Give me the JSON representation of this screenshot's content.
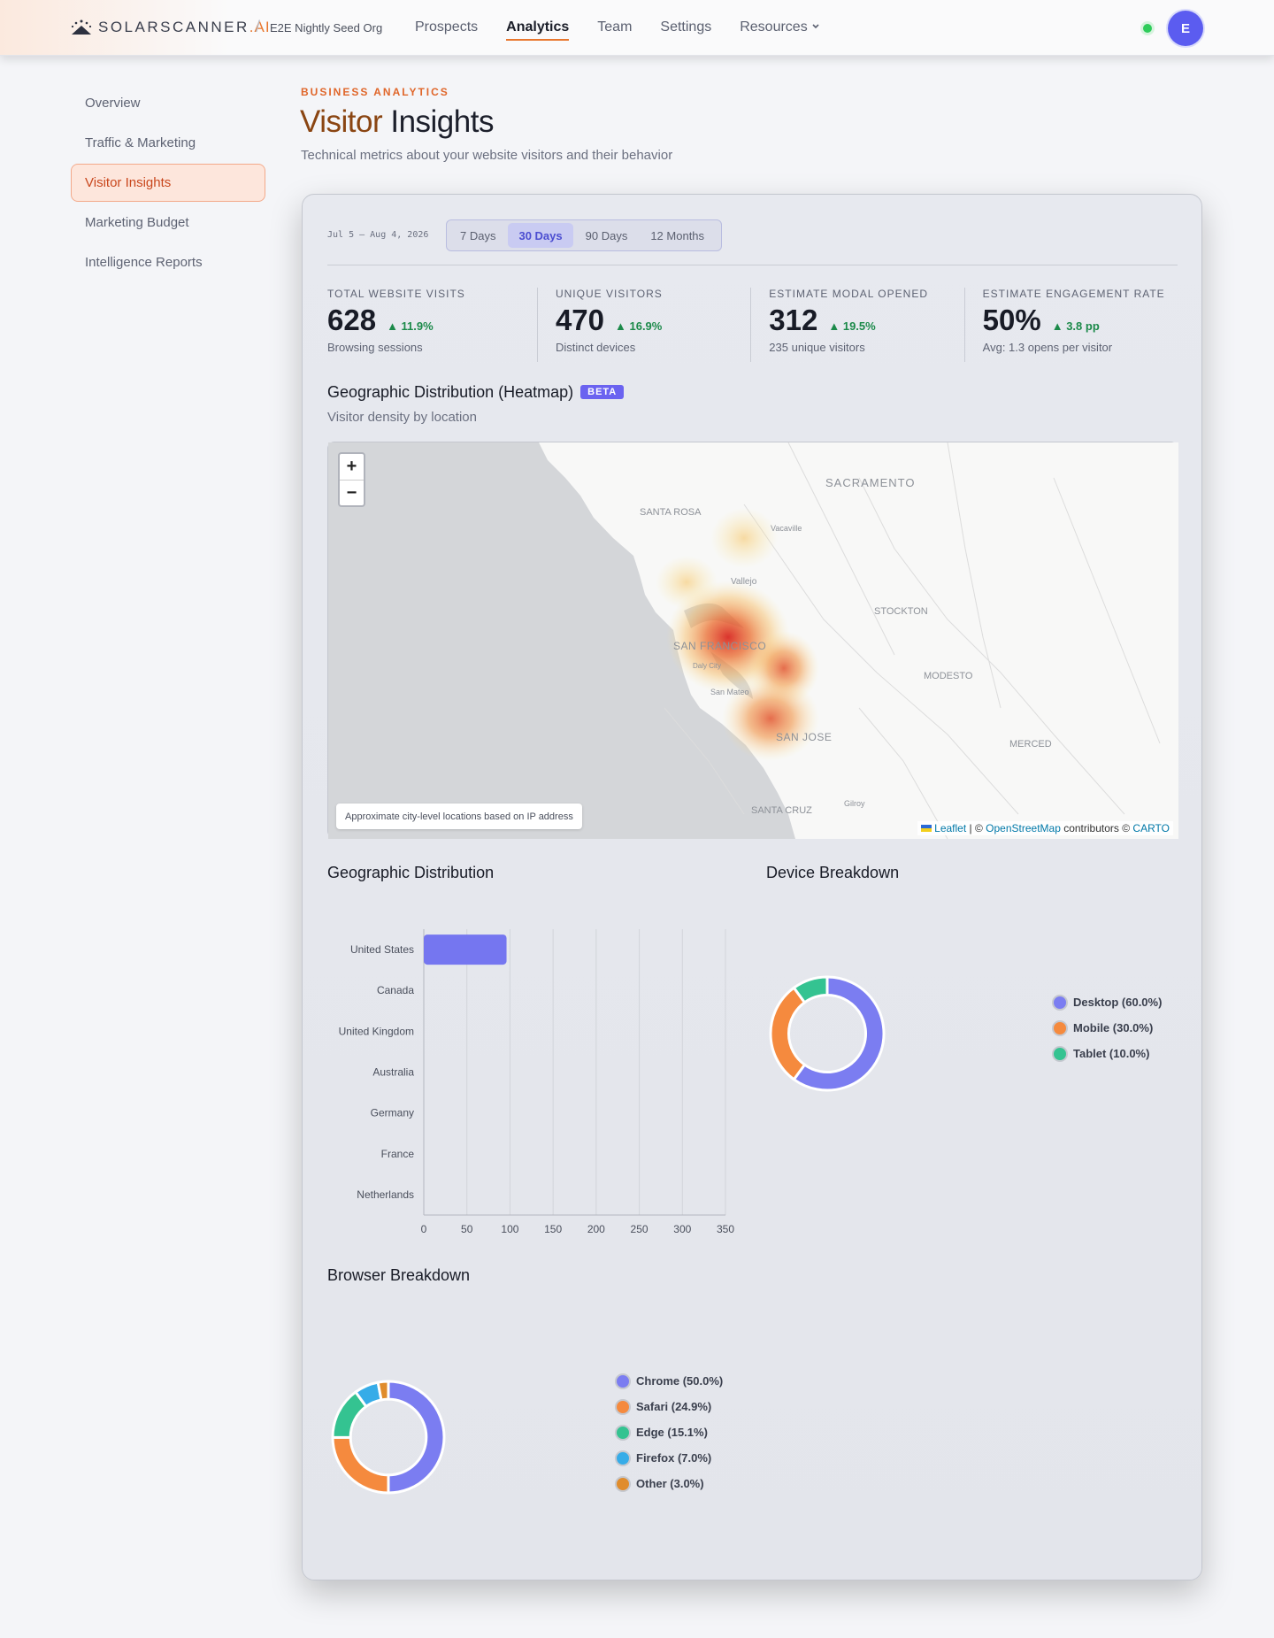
{
  "header": {
    "logo_text": "SOLARSCANNER",
    "logo_suffix": ".AI",
    "org": "E2E Nightly Seed Org",
    "nav": [
      {
        "label": "Prospects"
      },
      {
        "label": "Analytics"
      },
      {
        "label": "Team"
      },
      {
        "label": "Settings"
      },
      {
        "label": "Resources"
      }
    ],
    "avatar_initial": "E"
  },
  "sidebar": {
    "items": [
      {
        "label": "Overview"
      },
      {
        "label": "Traffic & Marketing"
      },
      {
        "label": "Visitor Insights"
      },
      {
        "label": "Marketing Budget"
      },
      {
        "label": "Intelligence Reports"
      }
    ]
  },
  "page": {
    "eyebrow": "BUSINESS ANALYTICS",
    "title_word1": "Visitor",
    "title_word2": "Insights",
    "subtitle": "Technical metrics about your website visitors and their behavior"
  },
  "filters": {
    "date_range": "Jul 5 – Aug 4, 2026",
    "tabs": [
      {
        "label": "7 Days"
      },
      {
        "label": "30 Days"
      },
      {
        "label": "90 Days"
      },
      {
        "label": "12 Months"
      }
    ],
    "selected": "30 Days"
  },
  "kpis": [
    {
      "label": "TOTAL WEBSITE VISITS",
      "value": "628",
      "delta": "▲ 11.9%",
      "sub": "Browsing sessions"
    },
    {
      "label": "UNIQUE VISITORS",
      "value": "470",
      "delta": "▲ 16.9%",
      "sub": "Distinct devices"
    },
    {
      "label": "ESTIMATE MODAL OPENED",
      "value": "312",
      "delta": "▲ 19.5%",
      "sub": "235 unique visitors"
    },
    {
      "label": "ESTIMATE ENGAGEMENT RATE",
      "value": "50%",
      "delta": "▲ 3.8 pp",
      "sub": "Avg: 1.3 opens per visitor"
    }
  ],
  "heatmap": {
    "title": "Geographic Distribution (Heatmap)",
    "badge": "BETA",
    "subtitle": "Visitor density by location",
    "zoom_in": "+",
    "zoom_out": "−",
    "note": "Approximate city-level locations based on IP address",
    "attribution": {
      "leaflet": "Leaflet",
      "sep1": " | © ",
      "osm": "OpenStreetMap",
      "sep2": " contributors © ",
      "carto": "CARTO"
    },
    "places": [
      {
        "name": "SACRAMENTO"
      },
      {
        "name": "SANTA ROSA"
      },
      {
        "name": "Vacaville"
      },
      {
        "name": "Vallejo"
      },
      {
        "name": "STOCKTON"
      },
      {
        "name": "SAN FRANCISCO"
      },
      {
        "name": "Daly City"
      },
      {
        "name": "San Mateo"
      },
      {
        "name": "MODESTO"
      },
      {
        "name": "SAN JOSE"
      },
      {
        "name": "MERCED"
      },
      {
        "name": "SANTA CRUZ"
      },
      {
        "name": "Gilroy"
      }
    ]
  },
  "geo_section": {
    "title": "Geographic Distribution"
  },
  "device_section": {
    "title": "Device Breakdown"
  },
  "browser_section": {
    "title": "Browser Breakdown"
  },
  "chart_data": [
    {
      "type": "bar",
      "orientation": "horizontal",
      "title": "Geographic Distribution",
      "categories": [
        "United States",
        "Canada",
        "United Kingdom",
        "Australia",
        "Germany",
        "France",
        "Netherlands"
      ],
      "values": [
        96,
        0,
        0,
        0,
        0,
        0,
        0
      ],
      "xlim": [
        0,
        350
      ],
      "xticks": [
        0,
        50,
        100,
        150,
        200,
        250,
        300,
        350
      ],
      "grid": true,
      "color": "#7576f0"
    },
    {
      "type": "pie",
      "donut": true,
      "title": "Device Breakdown",
      "categories": [
        "Desktop",
        "Mobile",
        "Tablet"
      ],
      "values": [
        60.0,
        30.0,
        10.0
      ],
      "labels": [
        "Desktop (60.0%)",
        "Mobile (30.0%)",
        "Tablet (10.0%)"
      ],
      "colors": [
        "#7b7df1",
        "#f58a3e",
        "#34c391"
      ],
      "legend": "right"
    },
    {
      "type": "pie",
      "donut": true,
      "title": "Browser Breakdown",
      "categories": [
        "Chrome",
        "Safari",
        "Edge",
        "Firefox",
        "Other"
      ],
      "values": [
        50.0,
        24.9,
        15.1,
        7.0,
        3.0
      ],
      "labels": [
        "Chrome (50.0%)",
        "Safari (24.9%)",
        "Edge (15.1%)",
        "Firefox (7.0%)",
        "Other (3.0%)"
      ],
      "colors": [
        "#7b7df1",
        "#f58a3e",
        "#34c391",
        "#36ace8",
        "#e08c2c"
      ],
      "legend": "right"
    }
  ],
  "colors": {
    "accent": "#e8772e",
    "primary": "#5b5cf0",
    "positive": "#1c8a4a",
    "status_online": "#2ecc5a"
  }
}
